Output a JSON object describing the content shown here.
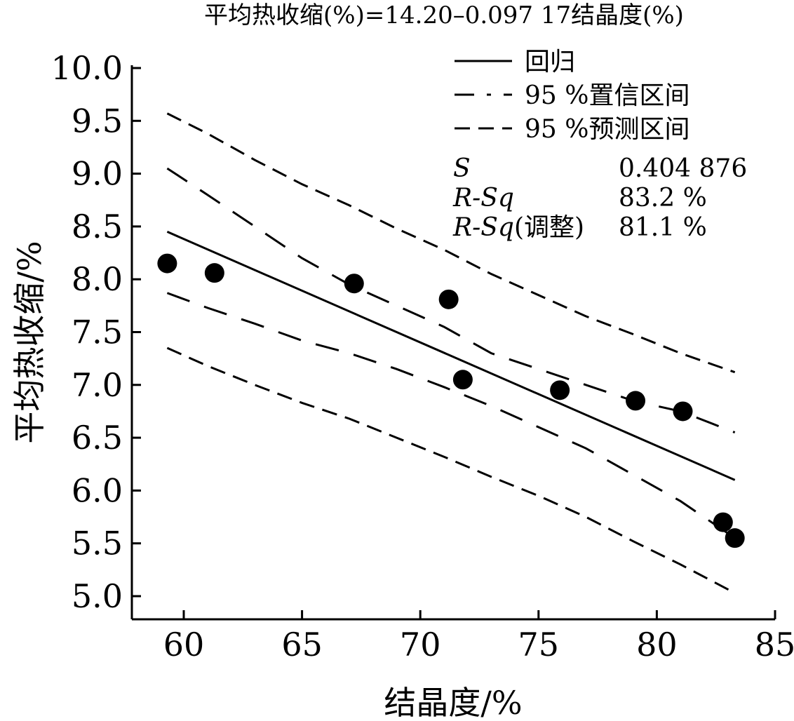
{
  "chart_data": {
    "type": "scatter",
    "title": "平均热收缩(%)=14.20–0.097 17结晶度(%)",
    "xlabel": "结晶度/%",
    "ylabel": "平均热收缩/%",
    "xlim": [
      58,
      85
    ],
    "ylim": [
      4.8,
      10.0
    ],
    "x_ticks": [
      60,
      65,
      70,
      75,
      80,
      85
    ],
    "y_ticks": [
      5.0,
      5.5,
      6.0,
      6.5,
      7.0,
      7.5,
      8.0,
      8.5,
      9.0,
      9.5,
      10.0
    ],
    "x_tick_labels": [
      "60",
      "65",
      "70",
      "75",
      "80",
      "85"
    ],
    "y_tick_labels": [
      "5.0",
      "5.5",
      "6.0",
      "6.5",
      "7.0",
      "7.5",
      "8.0",
      "8.5",
      "9.0",
      "9.5",
      "10.0"
    ],
    "grid": false,
    "legend_position": "top-right",
    "legend": {
      "regression": "回归",
      "confidence": "95 %置信区间",
      "prediction": "95 %预测区间"
    },
    "stats": {
      "s_label": "S",
      "s_value": "0.404 876",
      "rsq_label": "R-Sq",
      "rsq_value": "83.2 %",
      "rsqadj_label": "R-Sq",
      "rsqadj_suffix": "(调整)",
      "rsqadj_value": "81.1 %"
    },
    "points": [
      {
        "x": 59.3,
        "y": 8.15
      },
      {
        "x": 61.3,
        "y": 8.06
      },
      {
        "x": 67.2,
        "y": 7.96
      },
      {
        "x": 71.2,
        "y": 7.81
      },
      {
        "x": 71.8,
        "y": 7.05
      },
      {
        "x": 75.9,
        "y": 6.95
      },
      {
        "x": 79.1,
        "y": 6.85
      },
      {
        "x": 81.1,
        "y": 6.75
      },
      {
        "x": 82.8,
        "y": 5.7
      },
      {
        "x": 83.3,
        "y": 5.55
      }
    ],
    "regression_line": {
      "x": [
        59.3,
        83.3
      ],
      "y": [
        8.45,
        6.1
      ]
    },
    "confidence_upper": {
      "x": [
        59.3,
        61,
        63,
        65,
        67,
        69,
        71,
        73,
        75,
        77,
        79,
        81,
        83.3
      ],
      "y": [
        9.05,
        8.8,
        8.5,
        8.2,
        7.95,
        7.75,
        7.55,
        7.3,
        7.15,
        7.0,
        6.85,
        6.75,
        6.55
      ]
    },
    "confidence_lower": {
      "x": [
        59.3,
        61,
        63,
        65,
        67,
        69,
        71,
        73,
        75,
        77,
        79,
        81,
        83.3
      ],
      "y": [
        7.87,
        7.73,
        7.58,
        7.42,
        7.3,
        7.15,
        6.98,
        6.8,
        6.6,
        6.4,
        6.15,
        5.9,
        5.55
      ]
    },
    "prediction_upper": {
      "x": [
        59.3,
        61,
        63,
        65,
        67,
        69,
        71,
        73,
        75,
        77,
        79,
        81,
        83.3
      ],
      "y": [
        9.57,
        9.38,
        9.13,
        8.9,
        8.7,
        8.48,
        8.28,
        8.05,
        7.85,
        7.65,
        7.48,
        7.3,
        7.12
      ]
    },
    "prediction_lower": {
      "x": [
        59.3,
        61,
        63,
        65,
        67,
        69,
        71,
        73,
        75,
        77,
        79,
        81,
        83.3
      ],
      "y": [
        7.35,
        7.18,
        7.0,
        6.83,
        6.68,
        6.5,
        6.32,
        6.13,
        5.95,
        5.75,
        5.52,
        5.3,
        5.03
      ]
    }
  }
}
